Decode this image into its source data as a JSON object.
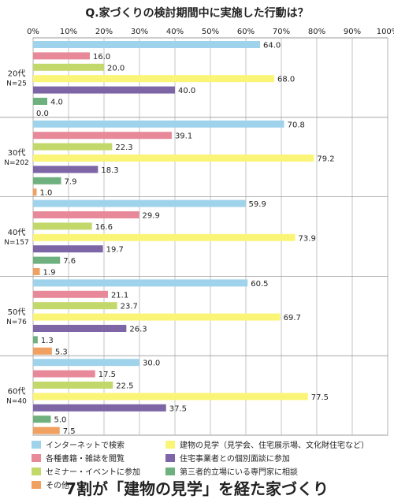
{
  "page": {
    "title": "Q.家づくりの検討期間中に実施した行動は？",
    "caption": "7割が「建物の見学」を経た家づくり"
  },
  "chart_data": {
    "type": "bar",
    "orientation": "horizontal",
    "title": "Q.家づくりの検討期間中に実施した行動は？",
    "xlim": [
      0,
      100
    ],
    "xticks": [
      "0%",
      "10%",
      "20%",
      "30%",
      "40%",
      "50%",
      "60%",
      "70%",
      "80%",
      "90%",
      "100%"
    ],
    "grid": true,
    "legend_position": "bottom",
    "groups": [
      {
        "label": "20代",
        "n": "N=25",
        "values": [
          64.0,
          16.0,
          20.0,
          68.0,
          40.0,
          4.0,
          0.0
        ]
      },
      {
        "label": "30代",
        "n": "N=202",
        "values": [
          70.8,
          39.1,
          22.3,
          79.2,
          18.3,
          7.9,
          1.0
        ]
      },
      {
        "label": "40代",
        "n": "N=157",
        "values": [
          59.9,
          29.9,
          16.6,
          73.9,
          19.7,
          7.6,
          1.9
        ]
      },
      {
        "label": "50代",
        "n": "N=76",
        "values": [
          60.5,
          21.1,
          23.7,
          69.7,
          26.3,
          1.3,
          5.3
        ]
      },
      {
        "label": "60代",
        "n": "N=40",
        "values": [
          30.0,
          17.5,
          22.5,
          77.5,
          37.5,
          5.0,
          7.5
        ]
      }
    ],
    "series": [
      {
        "name": "インターネットで検索",
        "color": "#9fd3ec"
      },
      {
        "name": "各種書籍・雑誌を閲覧",
        "color": "#e8899a"
      },
      {
        "name": "セミナー・イベントに参加",
        "color": "#c3d86a"
      },
      {
        "name": "建物の見学（見学会、住宅展示場、文化財住宅など）",
        "color": "#fbf577"
      },
      {
        "name": "住宅事業者との個別面談に参加",
        "color": "#7d65a6"
      },
      {
        "name": "第三者的立場にいる専門家に相談",
        "color": "#6fb07f"
      },
      {
        "name": "その他",
        "color": "#f0a060"
      }
    ],
    "legend_order": [
      0,
      3,
      1,
      4,
      2,
      5,
      6
    ]
  }
}
